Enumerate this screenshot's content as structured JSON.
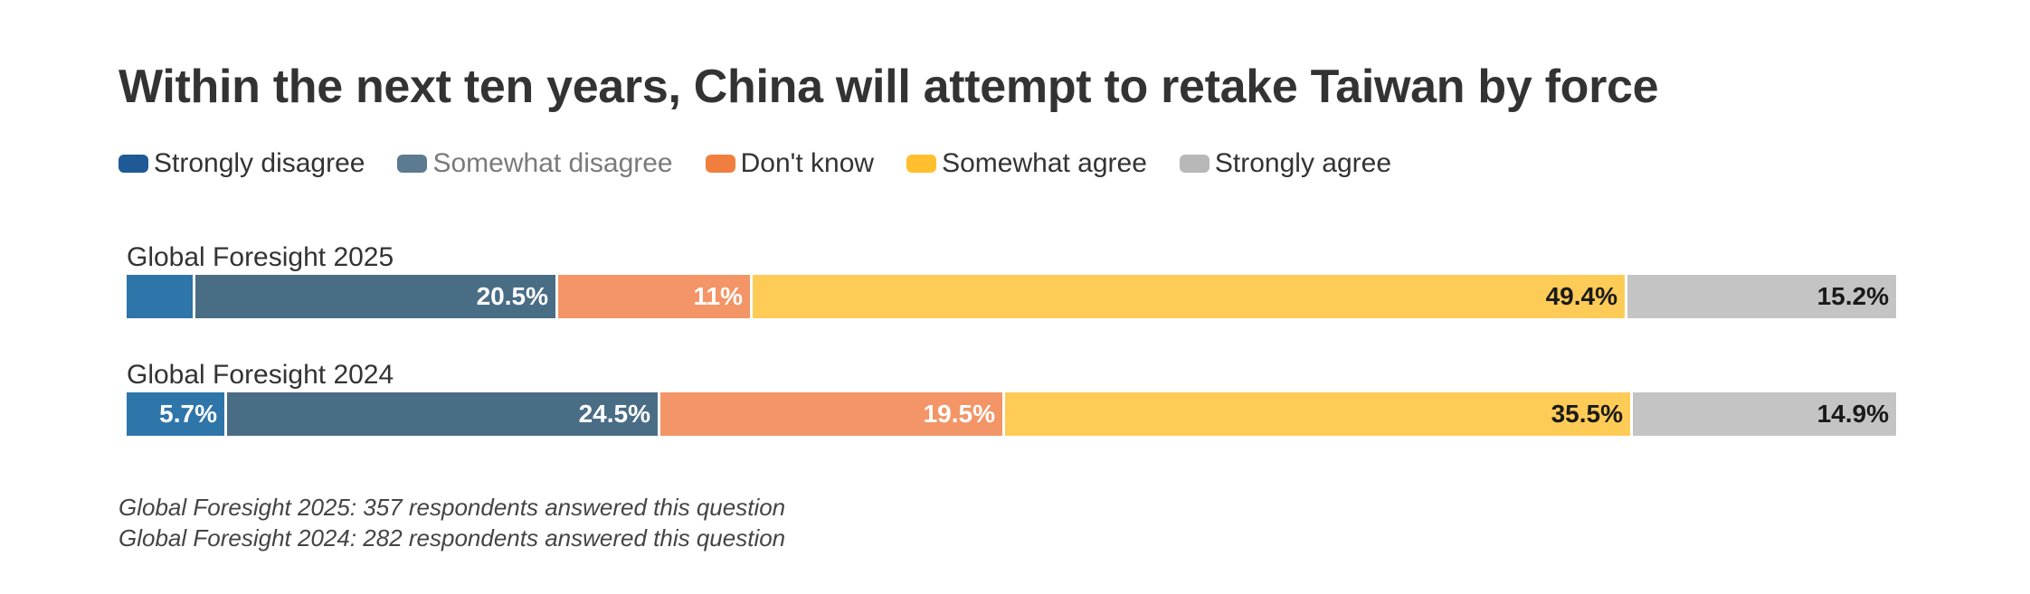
{
  "chart_data": {
    "type": "bar",
    "orientation": "horizontal",
    "stacked": true,
    "percent": true,
    "title": "Within the next ten years, China will attempt to retake Taiwan by force",
    "categories": [
      "Global Foresight 2025",
      "Global Foresight 2024"
    ],
    "series": [
      {
        "name": "Strongly disagree",
        "color": "#2E75AA",
        "legend_color": "#1F5A96",
        "text_color": "#ffffff",
        "values": [
          3.9,
          5.7
        ],
        "labels": [
          "",
          "5.7%"
        ]
      },
      {
        "name": "Somewhat disagree",
        "color": "#4A6D86",
        "legend_color": "#5C7A90",
        "text_color": "#ffffff",
        "values": [
          20.5,
          24.5
        ],
        "labels": [
          "20.5%",
          "24.5%"
        ]
      },
      {
        "name": "Don't know",
        "color": "#F39566",
        "legend_color": "#F07F3F",
        "text_color": "#ffffff",
        "values": [
          11,
          19.5
        ],
        "labels": [
          "11%",
          "19.5%"
        ]
      },
      {
        "name": "Somewhat agree",
        "color": "#FFCB57",
        "legend_color": "#FFBF2F",
        "text_color": "#1a1a1a",
        "values": [
          49.4,
          35.5
        ],
        "labels": [
          "49.4%",
          "35.5%"
        ]
      },
      {
        "name": "Strongly agree",
        "color": "#C4C4C4",
        "legend_color": "#B8B8B8",
        "text_color": "#1a1a1a",
        "values": [
          15.2,
          14.9
        ],
        "labels": [
          "15.2%",
          "14.9%"
        ]
      }
    ],
    "legend_position": "top-left",
    "grid": false
  },
  "notes": [
    "Global Foresight 2025: 357 respondents answered this question",
    "Global Foresight 2024: 282 respondents answered this question"
  ]
}
